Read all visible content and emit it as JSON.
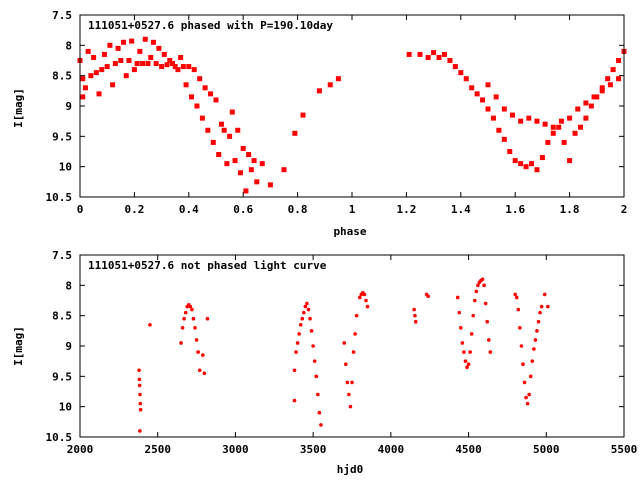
{
  "chart_data": [
    {
      "type": "scatter",
      "title": "111051+0527.6 phased with P=190.10day",
      "xlabel": "phase",
      "ylabel": "I[mag]",
      "xlim": [
        0,
        2
      ],
      "ylim": [
        10.5,
        7.5
      ],
      "y_inverted": true,
      "xticks": [
        "0",
        "0.2",
        "0.4",
        "0.6",
        "0.8",
        "1",
        "1.2",
        "1.4",
        "1.6",
        "1.8",
        "2"
      ],
      "yticks": [
        "7.5",
        "8",
        "8.5",
        "9",
        "9.5",
        "10",
        "10.5"
      ],
      "grid": false,
      "marker_color": "#ff0000",
      "marker": "filled-square",
      "points": [
        [
          0.0,
          8.25
        ],
        [
          0.01,
          8.55
        ],
        [
          0.01,
          8.85
        ],
        [
          0.02,
          8.7
        ],
        [
          0.03,
          8.1
        ],
        [
          0.04,
          8.5
        ],
        [
          0.05,
          8.2
        ],
        [
          0.06,
          8.45
        ],
        [
          0.07,
          8.8
        ],
        [
          0.08,
          8.4
        ],
        [
          0.09,
          8.15
        ],
        [
          0.1,
          8.35
        ],
        [
          0.11,
          8.0
        ],
        [
          0.12,
          8.65
        ],
        [
          0.13,
          8.3
        ],
        [
          0.14,
          8.05
        ],
        [
          0.15,
          8.25
        ],
        [
          0.16,
          7.95
        ],
        [
          0.17,
          8.5
        ],
        [
          0.18,
          8.25
        ],
        [
          0.19,
          7.93
        ],
        [
          0.2,
          8.4
        ],
        [
          0.21,
          8.3
        ],
        [
          0.22,
          8.1
        ],
        [
          0.23,
          8.3
        ],
        [
          0.24,
          7.9
        ],
        [
          0.25,
          8.3
        ],
        [
          0.26,
          8.2
        ],
        [
          0.27,
          7.95
        ],
        [
          0.28,
          8.3
        ],
        [
          0.29,
          8.05
        ],
        [
          0.3,
          8.35
        ],
        [
          0.31,
          8.15
        ],
        [
          0.32,
          8.32
        ],
        [
          0.33,
          8.25
        ],
        [
          0.34,
          8.3
        ],
        [
          0.35,
          8.35
        ],
        [
          0.36,
          8.4
        ],
        [
          0.37,
          8.2
        ],
        [
          0.38,
          8.35
        ],
        [
          0.39,
          8.65
        ],
        [
          0.4,
          8.35
        ],
        [
          0.41,
          8.85
        ],
        [
          0.42,
          8.4
        ],
        [
          0.43,
          9.0
        ],
        [
          0.44,
          8.55
        ],
        [
          0.45,
          9.2
        ],
        [
          0.46,
          8.7
        ],
        [
          0.47,
          9.4
        ],
        [
          0.48,
          8.8
        ],
        [
          0.49,
          9.6
        ],
        [
          0.5,
          8.9
        ],
        [
          0.51,
          9.8
        ],
        [
          0.52,
          9.3
        ],
        [
          0.53,
          9.4
        ],
        [
          0.54,
          9.95
        ],
        [
          0.55,
          9.5
        ],
        [
          0.56,
          9.1
        ],
        [
          0.57,
          9.9
        ],
        [
          0.58,
          9.4
        ],
        [
          0.59,
          10.1
        ],
        [
          0.6,
          9.7
        ],
        [
          0.61,
          10.4
        ],
        [
          0.62,
          9.8
        ],
        [
          0.63,
          10.05
        ],
        [
          0.64,
          9.9
        ],
        [
          0.65,
          10.25
        ],
        [
          0.67,
          9.95
        ],
        [
          0.7,
          10.3
        ],
        [
          0.75,
          10.05
        ],
        [
          0.79,
          9.45
        ],
        [
          0.82,
          9.15
        ],
        [
          0.88,
          8.75
        ],
        [
          0.92,
          8.65
        ],
        [
          0.95,
          8.55
        ],
        [
          1.21,
          8.15
        ],
        [
          1.25,
          8.15
        ],
        [
          1.28,
          8.2
        ],
        [
          1.3,
          8.12
        ],
        [
          1.32,
          8.2
        ],
        [
          1.34,
          8.15
        ],
        [
          1.36,
          8.25
        ],
        [
          1.38,
          8.35
        ],
        [
          1.4,
          8.45
        ],
        [
          1.42,
          8.55
        ],
        [
          1.44,
          8.7
        ],
        [
          1.46,
          8.8
        ],
        [
          1.48,
          8.9
        ],
        [
          1.5,
          9.05
        ],
        [
          1.52,
          9.2
        ],
        [
          1.54,
          9.4
        ],
        [
          1.56,
          9.55
        ],
        [
          1.58,
          9.75
        ],
        [
          1.6,
          9.9
        ],
        [
          1.62,
          9.95
        ],
        [
          1.64,
          10.0
        ],
        [
          1.66,
          9.95
        ],
        [
          1.68,
          10.05
        ],
        [
          1.7,
          9.85
        ],
        [
          1.72,
          9.6
        ],
        [
          1.74,
          9.45
        ],
        [
          1.76,
          9.35
        ],
        [
          1.78,
          9.6
        ],
        [
          1.8,
          9.9
        ],
        [
          1.82,
          9.45
        ],
        [
          1.84,
          9.35
        ],
        [
          1.86,
          9.2
        ],
        [
          1.88,
          9.0
        ],
        [
          1.9,
          8.85
        ],
        [
          1.92,
          8.7
        ],
        [
          1.94,
          8.55
        ],
        [
          1.96,
          8.4
        ],
        [
          1.98,
          8.25
        ],
        [
          2.0,
          8.1
        ],
        [
          1.5,
          8.65
        ],
        [
          1.53,
          8.85
        ],
        [
          1.56,
          9.05
        ],
        [
          1.59,
          9.15
        ],
        [
          1.62,
          9.25
        ],
        [
          1.65,
          9.2
        ],
        [
          1.68,
          9.25
        ],
        [
          1.71,
          9.3
        ],
        [
          1.74,
          9.35
        ],
        [
          1.77,
          9.25
        ],
        [
          1.8,
          9.2
        ],
        [
          1.83,
          9.05
        ],
        [
          1.86,
          8.95
        ],
        [
          1.89,
          8.85
        ],
        [
          1.92,
          8.75
        ],
        [
          1.95,
          8.65
        ],
        [
          1.98,
          8.55
        ]
      ]
    },
    {
      "type": "scatter",
      "title": "111051+0527.6 not phased light curve",
      "xlabel": "hjd0",
      "ylabel": "I[mag]",
      "xlim": [
        2000,
        5500
      ],
      "ylim": [
        10.5,
        7.5
      ],
      "y_inverted": true,
      "xticks": [
        "2000",
        "2500",
        "3000",
        "3500",
        "4000",
        "4500",
        "5000",
        "5500"
      ],
      "yticks": [
        "7.5",
        "8",
        "8.5",
        "9",
        "9.5",
        "10",
        "10.5"
      ],
      "grid": false,
      "marker_color": "#ff0000",
      "marker": "filled-circle",
      "points": [
        [
          2380,
          9.4
        ],
        [
          2382,
          9.55
        ],
        [
          2384,
          9.65
        ],
        [
          2386,
          9.8
        ],
        [
          2388,
          9.95
        ],
        [
          2390,
          10.05
        ],
        [
          2385,
          10.4
        ],
        [
          2450,
          8.65
        ],
        [
          2650,
          8.95
        ],
        [
          2660,
          8.7
        ],
        [
          2670,
          8.55
        ],
        [
          2680,
          8.45
        ],
        [
          2690,
          8.35
        ],
        [
          2700,
          8.32
        ],
        [
          2710,
          8.35
        ],
        [
          2720,
          8.4
        ],
        [
          2730,
          8.55
        ],
        [
          2740,
          8.7
        ],
        [
          2750,
          8.9
        ],
        [
          2760,
          9.1
        ],
        [
          2770,
          9.4
        ],
        [
          2790,
          9.15
        ],
        [
          2800,
          9.45
        ],
        [
          2820,
          8.55
        ],
        [
          3380,
          9.4
        ],
        [
          3390,
          9.1
        ],
        [
          3400,
          8.95
        ],
        [
          3410,
          8.8
        ],
        [
          3420,
          8.65
        ],
        [
          3430,
          8.55
        ],
        [
          3440,
          8.45
        ],
        [
          3450,
          8.35
        ],
        [
          3460,
          8.3
        ],
        [
          3470,
          8.4
        ],
        [
          3480,
          8.55
        ],
        [
          3490,
          8.75
        ],
        [
          3500,
          9.0
        ],
        [
          3510,
          9.25
        ],
        [
          3520,
          9.5
        ],
        [
          3530,
          9.8
        ],
        [
          3540,
          10.1
        ],
        [
          3550,
          10.3
        ],
        [
          3380,
          9.9
        ],
        [
          3700,
          8.95
        ],
        [
          3710,
          9.3
        ],
        [
          3720,
          9.6
        ],
        [
          3730,
          9.8
        ],
        [
          3740,
          10.0
        ],
        [
          3750,
          9.6
        ],
        [
          3760,
          9.1
        ],
        [
          3770,
          8.8
        ],
        [
          3780,
          8.5
        ],
        [
          3800,
          8.2
        ],
        [
          3810,
          8.15
        ],
        [
          3820,
          8.12
        ],
        [
          3830,
          8.15
        ],
        [
          3840,
          8.25
        ],
        [
          3850,
          8.35
        ],
        [
          4150,
          8.4
        ],
        [
          4155,
          8.5
        ],
        [
          4160,
          8.6
        ],
        [
          4230,
          8.15
        ],
        [
          4240,
          8.18
        ],
        [
          4430,
          8.2
        ],
        [
          4440,
          8.45
        ],
        [
          4450,
          8.7
        ],
        [
          4460,
          8.95
        ],
        [
          4470,
          9.1
        ],
        [
          4480,
          9.25
        ],
        [
          4490,
          9.35
        ],
        [
          4500,
          9.3
        ],
        [
          4510,
          9.1
        ],
        [
          4520,
          8.8
        ],
        [
          4530,
          8.5
        ],
        [
          4540,
          8.25
        ],
        [
          4550,
          8.1
        ],
        [
          4560,
          8.0
        ],
        [
          4570,
          7.95
        ],
        [
          4580,
          7.92
        ],
        [
          4590,
          7.9
        ],
        [
          4600,
          8.0
        ],
        [
          4610,
          8.3
        ],
        [
          4620,
          8.6
        ],
        [
          4630,
          8.9
        ],
        [
          4640,
          9.1
        ],
        [
          4800,
          8.15
        ],
        [
          4810,
          8.2
        ],
        [
          4820,
          8.4
        ],
        [
          4830,
          8.7
        ],
        [
          4840,
          9.0
        ],
        [
          4850,
          9.3
        ],
        [
          4860,
          9.6
        ],
        [
          4870,
          9.85
        ],
        [
          4880,
          9.95
        ],
        [
          4890,
          9.8
        ],
        [
          4900,
          9.5
        ],
        [
          4910,
          9.25
        ],
        [
          4920,
          9.05
        ],
        [
          4930,
          8.9
        ],
        [
          4940,
          8.75
        ],
        [
          4950,
          8.6
        ],
        [
          4960,
          8.45
        ],
        [
          4970,
          8.35
        ],
        [
          4990,
          8.15
        ],
        [
          5010,
          8.35
        ]
      ]
    }
  ]
}
